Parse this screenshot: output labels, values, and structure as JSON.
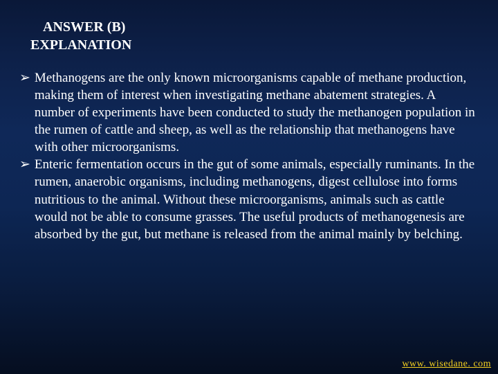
{
  "header": {
    "line1": "ANSWER (B)",
    "line2": "EXPLANATION"
  },
  "bullets": [
    {
      "marker": "➢",
      "text": "Methanogens are the only known microorganisms capable of methane production, making them of interest when investigating methane abatement strategies. A number of experiments have been conducted to study the methanogen population in the rumen of cattle and sheep, as well as the relationship that methanogens have with other microorganisms."
    },
    {
      "marker": "➢",
      "text": "Enteric fermentation occurs in the gut of some animals, especially ruminants. In the rumen, anaerobic organisms, including methanogens, digest cellulose into forms nutritious to the animal. Without these microorganisms, animals such as cattle would not be able to consume grasses. The useful products of methanogenesis are absorbed by the gut, but methane is released from the animal mainly by belching."
    }
  ],
  "footer": {
    "url": "www. wisedane. com"
  },
  "colors": {
    "text": "#ffffff",
    "footer_link": "#f5d020",
    "bg_top": "#0a1838",
    "bg_bottom": "#050e20"
  }
}
